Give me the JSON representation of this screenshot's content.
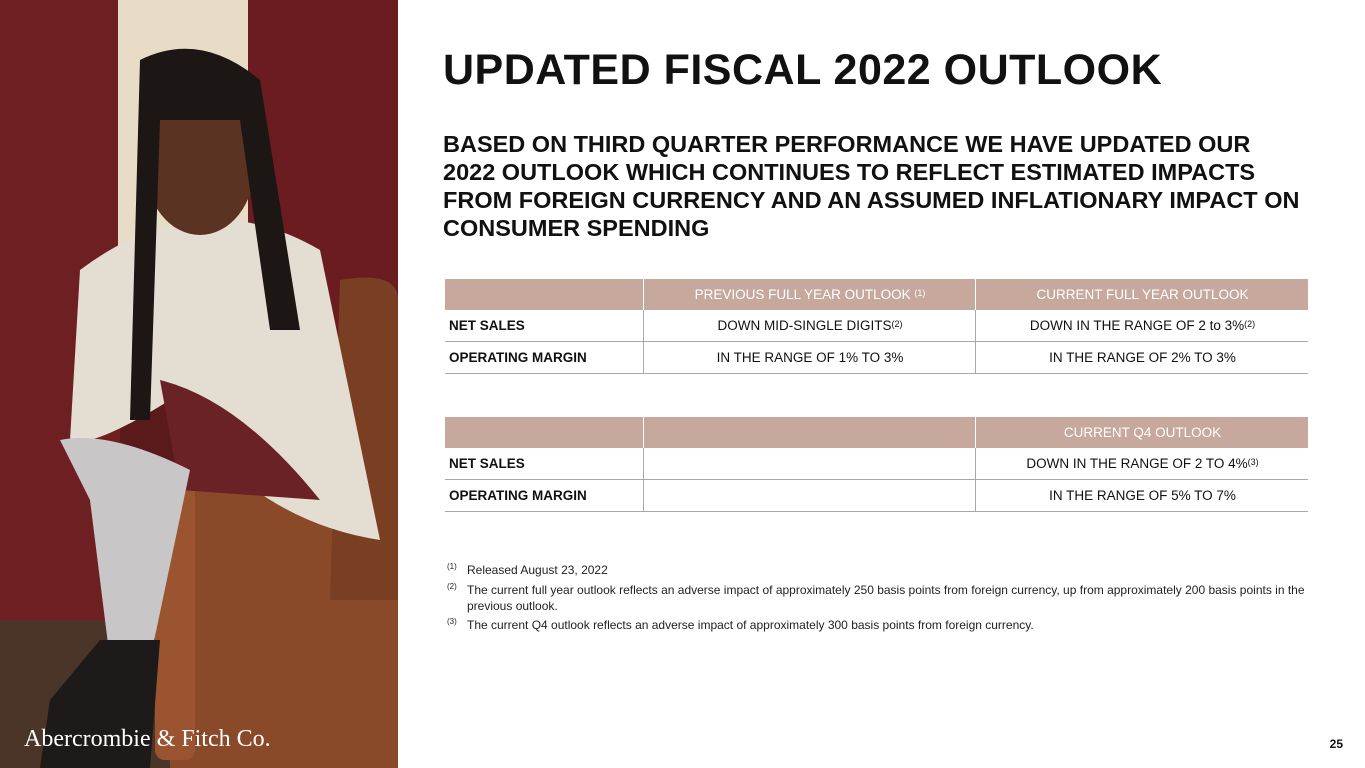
{
  "title": "UPDATED FISCAL 2022 OUTLOOK",
  "subtitle": "BASED ON THIRD QUARTER PERFORMANCE WE HAVE UPDATED OUR 2022 OUTLOOK WHICH CONTINUES TO REFLECT ESTIMATED IMPACTS FROM FOREIGN CURRENCY AND AN ASSUMED INFLATIONARY IMPACT ON CONSUMER SPENDING",
  "tables": [
    {
      "header": [
        {
          "text": "PREVIOUS FULL YEAR OUTLOOK",
          "note": "(1)"
        },
        {
          "text": "CURRENT FULL YEAR OUTLOOK"
        }
      ],
      "rows": [
        {
          "label": "NET SALES",
          "cells": [
            {
              "text": "DOWN MID-SINGLE DIGITS",
              "note": "(2)"
            },
            {
              "text": "DOWN IN THE RANGE OF 2 to 3%",
              "note": "(2)"
            }
          ]
        },
        {
          "label": "OPERATING MARGIN",
          "cells": [
            {
              "text": "IN THE RANGE OF 1% TO 3%"
            },
            {
              "text": "IN THE RANGE OF 2% TO 3%"
            }
          ]
        }
      ]
    },
    {
      "header": [
        {
          "text": "CURRENT Q4 OUTLOOK"
        }
      ],
      "rows": [
        {
          "label": "NET SALES",
          "cells": [
            {
              "text": "DOWN IN THE RANGE OF 2 TO 4%",
              "note": "(3)"
            }
          ]
        },
        {
          "label": "OPERATING MARGIN",
          "cells": [
            {
              "text": "IN THE RANGE OF 5% TO 7%"
            }
          ]
        }
      ]
    }
  ],
  "footnotes": [
    {
      "marker": "(1)",
      "text": "Released August 23, 2022"
    },
    {
      "marker": "(2)",
      "text": "The current full year outlook reflects an adverse impact of approximately 250 basis points from foreign currency, up from approximately 200 basis points in the previous outlook."
    },
    {
      "marker": "(3)",
      "text": "The current Q4 outlook reflects an adverse impact of approximately 300 basis points from foreign currency."
    }
  ],
  "brand": "Abercrombie & Fitch Co.",
  "page_number": "25"
}
